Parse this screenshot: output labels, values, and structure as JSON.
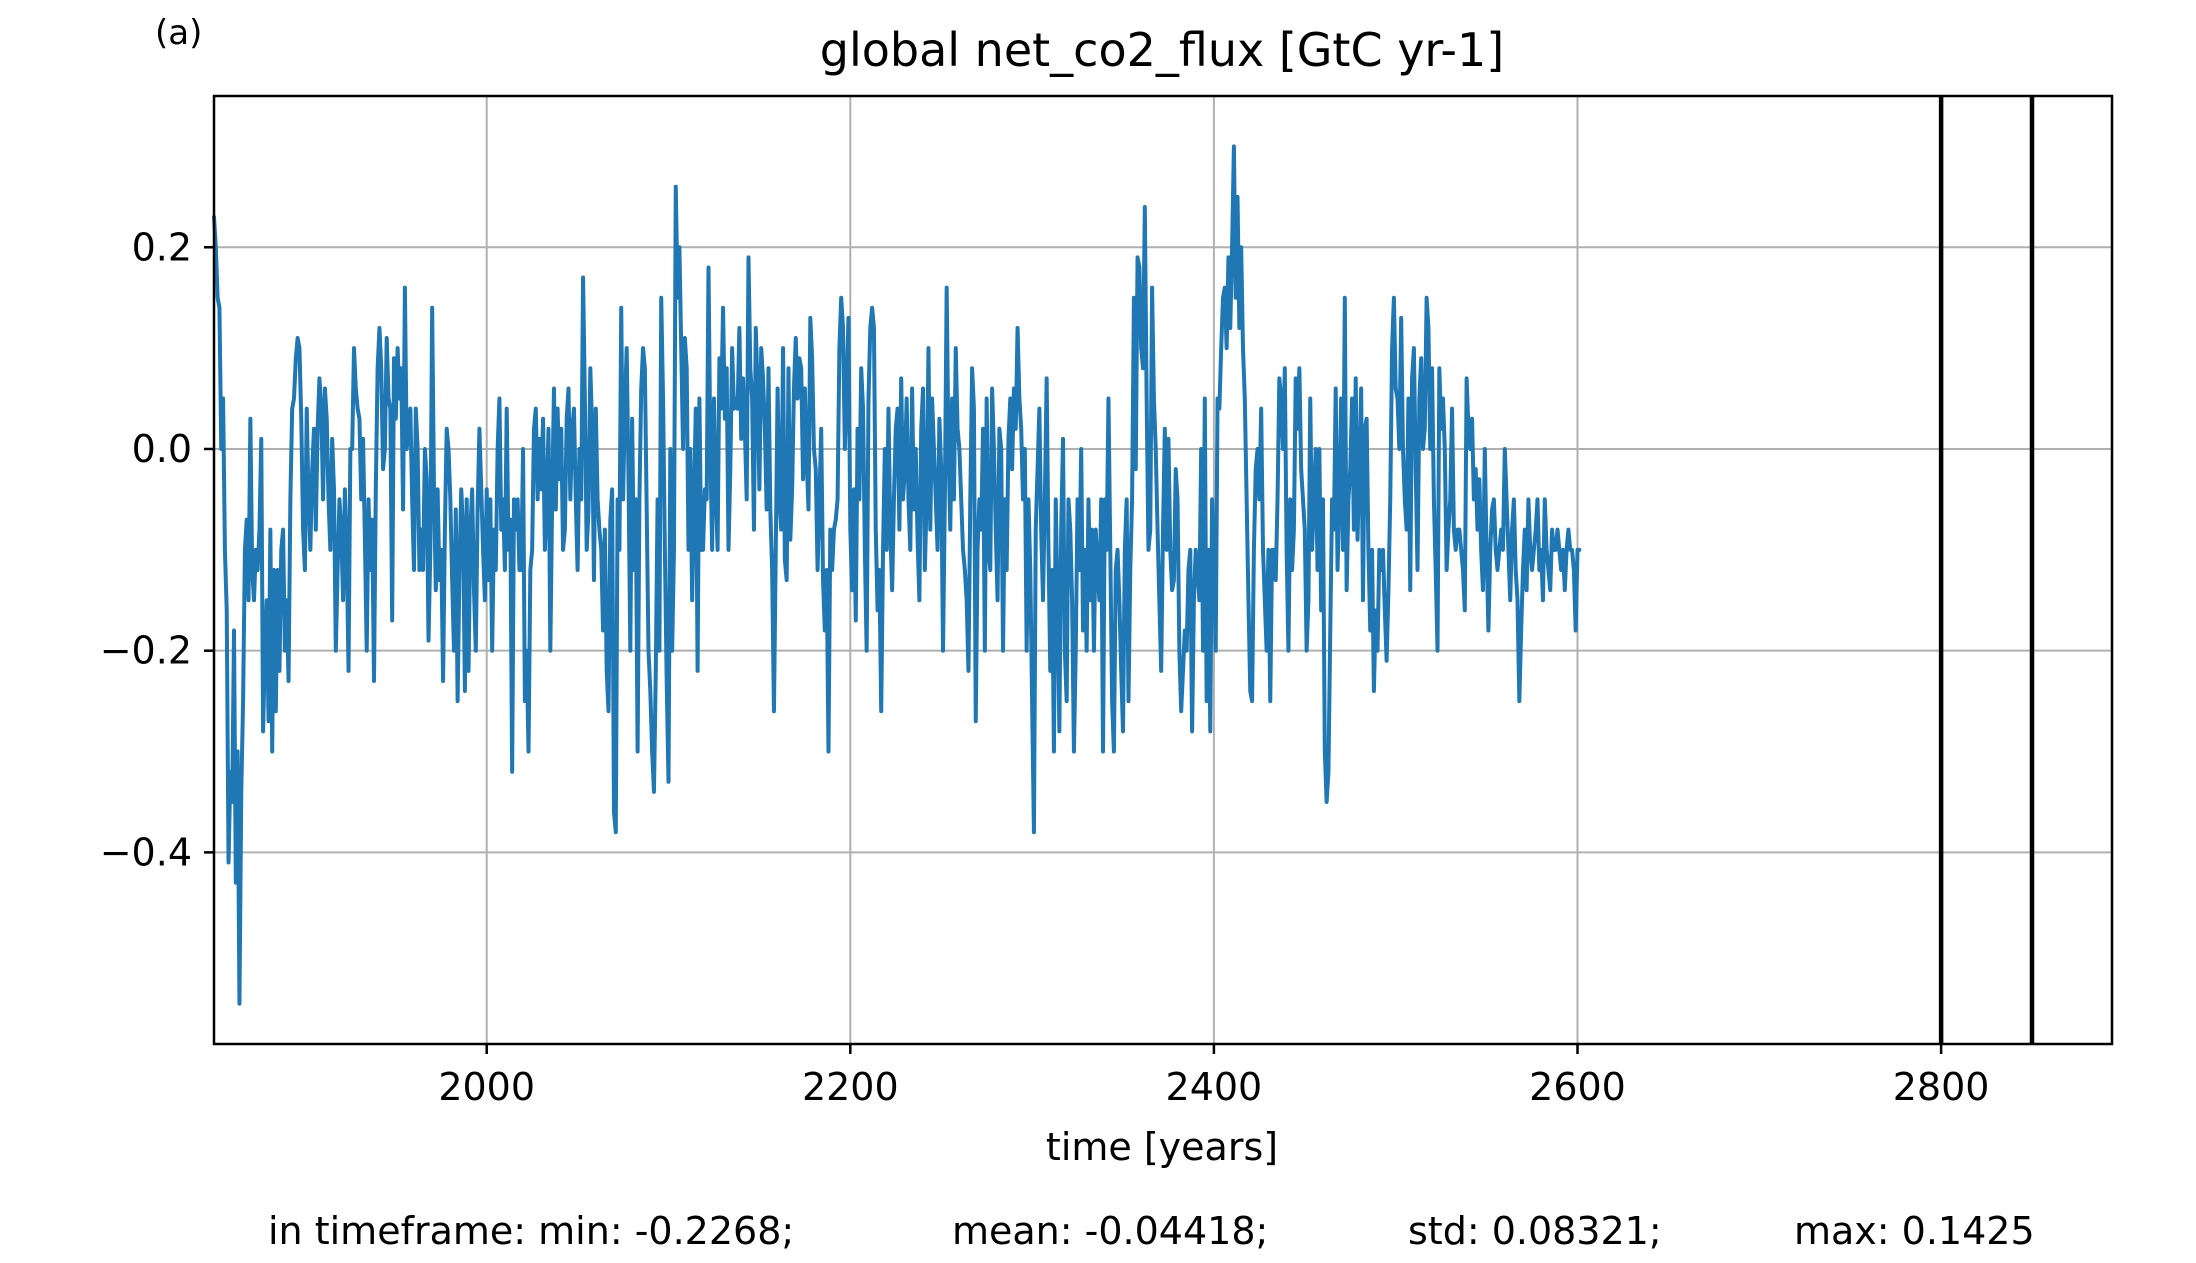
{
  "chart_data": {
    "type": "line",
    "panel_label": "(a)",
    "title": "global net_co2_flux [GtC yr-1]",
    "xlabel": "time [years]",
    "ylabel": "",
    "xlim": [
      1850,
      2894
    ],
    "ylim": [
      -0.59,
      0.35
    ],
    "xticks": [
      {
        "value": 2000,
        "label": "2000"
      },
      {
        "value": 2200,
        "label": "2200"
      },
      {
        "value": 2400,
        "label": "2400"
      },
      {
        "value": 2600,
        "label": "2600"
      },
      {
        "value": 2800,
        "label": "2800"
      }
    ],
    "yticks": [
      {
        "value": 0.2,
        "label": "0.2"
      },
      {
        "value": 0.0,
        "label": "0.0"
      },
      {
        "value": -0.2,
        "label": "−0.2"
      },
      {
        "value": -0.4,
        "label": "−0.4"
      }
    ],
    "grid": true,
    "line_color": "#1f77b4",
    "vlines": [
      2800,
      2850
    ],
    "series": [
      {
        "x_start": 1850,
        "x_step": 1,
        "values": [
          0.23,
          0.2,
          0.15,
          0.14,
          0.0,
          0.05,
          -0.1,
          -0.16,
          -0.41,
          -0.32,
          -0.35,
          -0.18,
          -0.43,
          -0.3,
          -0.55,
          -0.34,
          -0.25,
          -0.1,
          -0.07,
          -0.15,
          0.03,
          -0.12,
          -0.15,
          -0.1,
          -0.12,
          -0.08,
          0.01,
          -0.28,
          -0.2,
          -0.15,
          -0.27,
          -0.08,
          -0.3,
          -0.12,
          -0.26,
          -0.12,
          -0.22,
          -0.1,
          -0.08,
          -0.2,
          -0.15,
          -0.23,
          -0.05,
          0.04,
          0.05,
          0.09,
          0.11,
          0.1,
          0.03,
          -0.08,
          -0.12,
          0.04,
          -0.05,
          -0.1,
          -0.02,
          0.02,
          -0.08,
          0.02,
          0.07,
          0.04,
          -0.05,
          0.06,
          0.03,
          -0.05,
          -0.1,
          0.01,
          -0.04,
          -0.2,
          -0.12,
          -0.05,
          -0.08,
          -0.15,
          -0.04,
          -0.1,
          -0.22,
          0.0,
          0.0,
          0.1,
          0.06,
          0.04,
          0.03,
          -0.05,
          0.01,
          -0.09,
          -0.2,
          -0.05,
          -0.12,
          -0.07,
          -0.23,
          -0.04,
          0.08,
          0.12,
          0.08,
          -0.02,
          0.0,
          0.11,
          0.05,
          0.04,
          -0.17,
          0.09,
          0.03,
          0.1,
          0.05,
          0.08,
          -0.06,
          0.16,
          0.0,
          0.02,
          0.04,
          -0.05,
          -0.12,
          0.04,
          0.0,
          -0.12,
          -0.08,
          -0.12,
          0.0,
          -0.03,
          -0.19,
          -0.1,
          0.14,
          -0.04,
          -0.14,
          -0.04,
          -0.13,
          -0.1,
          -0.23,
          -0.08,
          0.02,
          0.0,
          -0.05,
          -0.13,
          -0.2,
          -0.06,
          -0.25,
          -0.12,
          -0.04,
          -0.08,
          -0.24,
          -0.05,
          -0.22,
          -0.08,
          -0.04,
          -0.14,
          -0.2,
          -0.06,
          0.02,
          -0.04,
          -0.1,
          -0.15,
          -0.04,
          -0.13,
          -0.05,
          -0.2,
          -0.08,
          -0.12,
          0.0,
          0.05,
          -0.08,
          -0.05,
          -0.12,
          0.04,
          -0.1,
          -0.07,
          -0.32,
          -0.05,
          -0.08,
          -0.05,
          -0.12,
          -0.12,
          0.0,
          -0.25,
          -0.2,
          -0.3,
          -0.12,
          -0.1,
          0.02,
          0.04,
          -0.05,
          0.01,
          -0.04,
          0.03,
          -0.1,
          -0.05,
          0.02,
          -0.2,
          -0.05,
          0.06,
          -0.06,
          0.04,
          -0.03,
          0.02,
          -0.1,
          -0.08,
          0.03,
          0.06,
          -0.05,
          0.02,
          0.04,
          -0.05,
          -0.12,
          0.0,
          -0.05,
          0.17,
          0.05,
          -0.1,
          -0.06,
          0.08,
          0.02,
          -0.13,
          0.04,
          -0.05,
          -0.08,
          -0.1,
          -0.18,
          -0.08,
          -0.22,
          -0.26,
          -0.07,
          -0.04,
          -0.36,
          -0.38,
          -0.05,
          -0.1,
          0.14,
          -0.05,
          0.04,
          0.1,
          -0.03,
          -0.2,
          0.03,
          -0.12,
          -0.05,
          -0.3,
          -0.05,
          0.06,
          0.1,
          0.08,
          -0.06,
          -0.2,
          -0.24,
          -0.3,
          -0.34,
          -0.22,
          -0.05,
          -0.2,
          0.15,
          0.05,
          -0.1,
          -0.23,
          -0.33,
          0.0,
          -0.2,
          -0.1,
          0.26,
          0.15,
          0.2,
          0.1,
          0.0,
          0.11,
          0.08,
          -0.1,
          0.0,
          -0.15,
          -0.05,
          0.04,
          -0.22,
          0.05,
          -0.1,
          -0.1,
          -0.04,
          -0.05,
          0.18,
          0.0,
          -0.1,
          0.05,
          -0.04,
          -0.1,
          0.09,
          0.04,
          0.14,
          0.03,
          0.08,
          -0.1,
          -0.02,
          0.1,
          0.04,
          0.05,
          0.04,
          0.12,
          0.01,
          0.07,
          0.02,
          -0.05,
          0.19,
          0.08,
          0.05,
          -0.08,
          0.12,
          0.06,
          -0.04,
          0.1,
          0.07,
          0.02,
          -0.06,
          0.08,
          -0.06,
          -0.12,
          -0.26,
          -0.1,
          0.06,
          -0.05,
          -0.08,
          0.1,
          -0.11,
          -0.13,
          0.08,
          -0.09,
          -0.04,
          0.06,
          0.11,
          0.05,
          0.09,
          0.08,
          -0.03,
          0.06,
          -0.01,
          -0.06,
          0.13,
          0.09,
          0.0,
          -0.02,
          -0.12,
          -0.05,
          0.02,
          -0.13,
          -0.18,
          -0.12,
          -0.3,
          -0.08,
          -0.12,
          -0.08,
          -0.07,
          -0.05,
          0.1,
          0.15,
          0.12,
          0.0,
          0.06,
          0.13,
          -0.08,
          -0.14,
          -0.04,
          -0.17,
          0.02,
          -0.05,
          0.08,
          0.04,
          -0.1,
          -0.2,
          0.05,
          0.12,
          0.14,
          0.12,
          -0.08,
          -0.16,
          -0.12,
          -0.26,
          -0.1,
          0.0,
          -0.1,
          0.04,
          -0.08,
          -0.14,
          -0.05,
          0.02,
          0.04,
          -0.08,
          0.07,
          -0.05,
          -0.02,
          0.05,
          -0.05,
          -0.1,
          0.06,
          -0.06,
          0.0,
          -0.09,
          -0.15,
          0.02,
          0.06,
          -0.12,
          -0.05,
          0.1,
          -0.08,
          0.05,
          0.0,
          -0.05,
          -0.1,
          0.03,
          -0.02,
          -0.2,
          -0.05,
          0.16,
          0.0,
          -0.08,
          0.05,
          -0.05,
          0.1,
          0.02,
          0.0,
          -0.05,
          -0.1,
          -0.12,
          -0.15,
          -0.22,
          -0.05,
          0.08,
          0.04,
          -0.27,
          -0.1,
          -0.05,
          -0.08,
          0.02,
          -0.2,
          0.05,
          -0.1,
          -0.12,
          0.06,
          0.0,
          -0.08,
          -0.15,
          0.02,
          0.0,
          -0.2,
          -0.05,
          -0.12,
          0.01,
          0.05,
          -0.02,
          0.06,
          0.02,
          0.12,
          0.05,
          0.02,
          -0.05,
          0.0,
          -0.2,
          -0.05,
          -0.12,
          -0.25,
          -0.38,
          -0.08,
          -0.02,
          0.04,
          -0.08,
          -0.15,
          -0.05,
          0.07,
          -0.1,
          -0.22,
          -0.12,
          -0.3,
          -0.05,
          -0.15,
          -0.28,
          -0.08,
          0.01,
          -0.2,
          -0.25,
          -0.05,
          -0.08,
          -0.15,
          -0.3,
          -0.2,
          -0.05,
          -0.12,
          0.0,
          -0.18,
          -0.1,
          -0.2,
          -0.05,
          -0.15,
          -0.08,
          -0.2,
          -0.08,
          -0.12,
          -0.15,
          -0.05,
          -0.3,
          -0.05,
          -0.1,
          0.05,
          -0.1,
          -0.25,
          -0.3,
          -0.12,
          -0.1,
          -0.15,
          -0.22,
          -0.28,
          -0.1,
          -0.05,
          -0.25,
          -0.12,
          -0.05,
          0.15,
          -0.02,
          0.19,
          0.18,
          0.1,
          0.08,
          0.24,
          0.05,
          -0.1,
          -0.08,
          0.16,
          0.05,
          0.0,
          -0.08,
          -0.15,
          -0.22,
          -0.08,
          0.02,
          -0.1,
          0.01,
          -0.1,
          -0.14,
          -0.13,
          -0.02,
          -0.05,
          -0.2,
          -0.26,
          -0.22,
          -0.18,
          -0.2,
          -0.12,
          -0.1,
          -0.28,
          -0.15,
          -0.1,
          -0.12,
          -0.15,
          0.0,
          -0.2,
          0.05,
          -0.25,
          -0.1,
          -0.28,
          -0.05,
          -0.1,
          -0.2,
          0.05,
          0.04,
          0.1,
          0.15,
          0.16,
          0.1,
          0.19,
          0.12,
          0.2,
          0.3,
          0.15,
          0.25,
          0.12,
          0.2,
          0.1,
          0.05,
          -0.05,
          -0.15,
          -0.24,
          -0.25,
          -0.1,
          -0.02,
          0.0,
          -0.05,
          0.04,
          -0.1,
          -0.15,
          -0.2,
          -0.1,
          -0.25,
          -0.1,
          -0.1,
          -0.13,
          -0.05,
          0.07,
          0.05,
          0.0,
          0.08,
          -0.1,
          -0.2,
          -0.05,
          -0.12,
          -0.08,
          0.07,
          0.02,
          0.08,
          -0.02,
          -0.05,
          -0.08,
          -0.2,
          -0.15,
          0.05,
          -0.1,
          -0.05,
          0.0,
          -0.12,
          0.0,
          -0.16,
          -0.05,
          -0.3,
          -0.35,
          -0.32,
          -0.18,
          -0.05,
          -0.08,
          0.06,
          -0.12,
          -0.05,
          0.05,
          -0.1,
          0.15,
          -0.14,
          -0.05,
          -0.02,
          0.05,
          -0.08,
          0.07,
          -0.09,
          -0.02,
          0.06,
          -0.15,
          0.02,
          0.03,
          -0.1,
          -0.18,
          -0.1,
          -0.24,
          -0.16,
          -0.2,
          -0.1,
          -0.12,
          -0.1,
          -0.16,
          -0.21,
          -0.14,
          -0.05,
          0.1,
          0.15,
          0.06,
          0.05,
          0.0,
          0.13,
          0.0,
          -0.05,
          -0.08,
          0.05,
          -0.14,
          0.07,
          0.1,
          -0.02,
          -0.12,
          0.05,
          0.09,
          0.0,
          0.02,
          0.15,
          0.12,
          0.0,
          0.08,
          -0.05,
          -0.12,
          -0.2,
          0.08,
          0.02,
          0.05,
          0.0,
          -0.12,
          -0.08,
          -0.05,
          0.04,
          -0.08,
          -0.1,
          -0.08,
          -0.08,
          -0.1,
          -0.12,
          -0.16,
          0.07,
          0.02,
          0.0,
          0.03,
          -0.05,
          -0.02,
          -0.08,
          -0.03,
          -0.1,
          -0.14,
          0.0,
          -0.1,
          -0.18,
          -0.1,
          -0.06,
          -0.05,
          -0.1,
          -0.12,
          -0.1,
          -0.08,
          -0.1,
          0.0,
          -0.05,
          -0.1,
          -0.15,
          -0.08,
          -0.05,
          -0.12,
          -0.15,
          -0.25,
          -0.18,
          -0.12,
          -0.08,
          -0.14,
          -0.05,
          -0.1,
          -0.12,
          -0.1,
          -0.08,
          -0.05,
          -0.12,
          -0.1,
          -0.15,
          -0.05,
          -0.1,
          -0.12,
          -0.14,
          -0.08,
          -0.1,
          -0.1,
          -0.08,
          -0.1,
          -0.12,
          -0.1,
          -0.14,
          -0.1,
          -0.08,
          -0.1,
          -0.1,
          -0.12,
          -0.18,
          -0.1,
          -0.1
        ]
      }
    ],
    "stats": {
      "prefix": "in timeframe:",
      "min": "min: -0.2268;",
      "mean": "mean: -0.04418;",
      "std": "std: 0.08321;",
      "max": "max: 0.1425"
    }
  }
}
